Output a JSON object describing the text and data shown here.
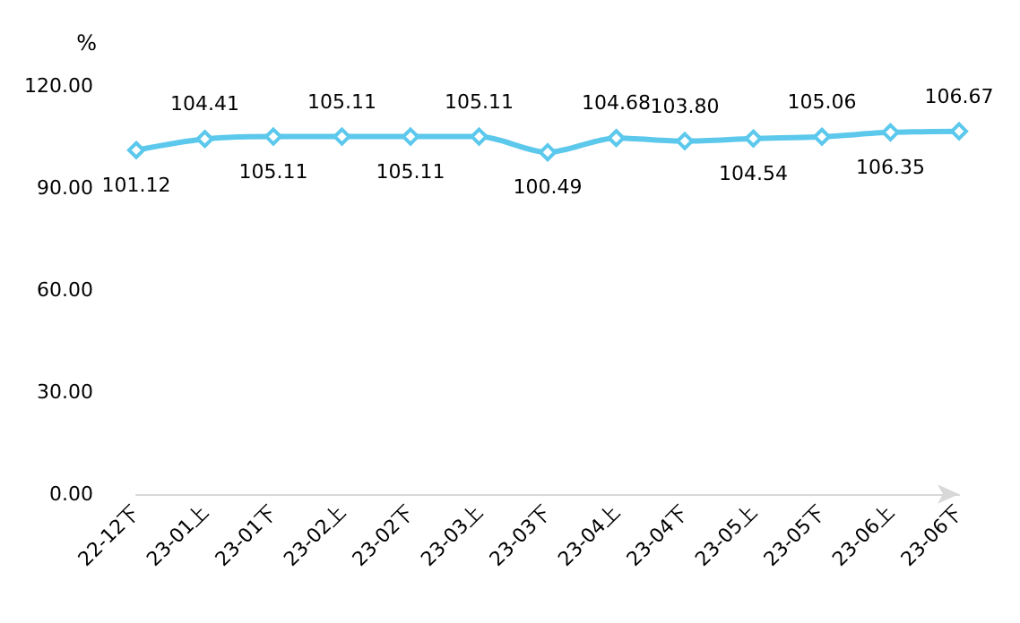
{
  "chart_data": {
    "type": "line",
    "ylabel": "%",
    "categories": [
      "22-12下",
      "23-01上",
      "23-01下",
      "23-02上",
      "23-02下",
      "23-03上",
      "23-03下",
      "23-04上",
      "23-04下",
      "23-05上",
      "23-05下",
      "23-06上",
      "23-06下"
    ],
    "series": [
      {
        "color": "#5bc8ec",
        "values": [
          101.12,
          104.41,
          105.11,
          105.11,
          105.11,
          105.11,
          100.49,
          104.68,
          103.8,
          104.54,
          105.06,
          106.35,
          106.67
        ],
        "value_labels": [
          "101.12",
          "104.41",
          "105.11",
          "105.11",
          "105.11",
          "105.11",
          "100.49",
          "104.68",
          "103.80",
          "104.54",
          "105.06",
          "106.35",
          "106.67"
        ]
      }
    ],
    "ylim": [
      0,
      120
    ],
    "yticks": [
      {
        "value": 0,
        "label": "0.00"
      },
      {
        "value": 30,
        "label": "30.00"
      },
      {
        "value": 60,
        "label": "60.00"
      },
      {
        "value": 90,
        "label": "90.00"
      },
      {
        "value": 120,
        "label": "120.00"
      }
    ],
    "grid": false,
    "marker": "diamond",
    "line_style": "solid"
  }
}
